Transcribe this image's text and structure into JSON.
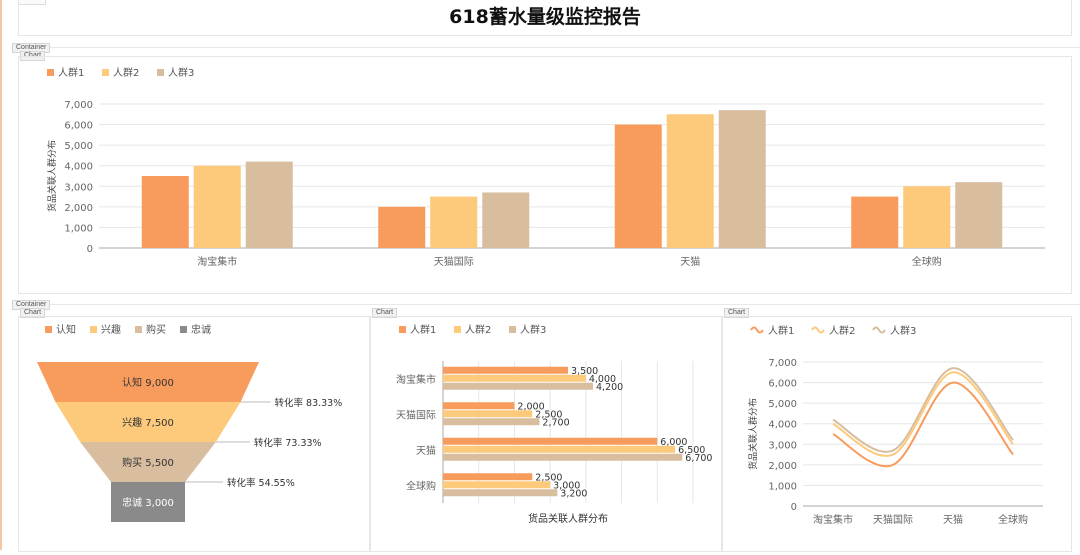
{
  "report": {
    "title": "618蓄水量级监控报告"
  },
  "labels": {
    "container": "Container",
    "chart": "Chart"
  },
  "colors": {
    "s1": "#f89c5e",
    "s2": "#fcca7a",
    "s3": "#d8bd9f",
    "s4": "#8a8a8a",
    "axis": "#666666",
    "grid": "#e6e6e6"
  },
  "chart_data": [
    {
      "type": "bar",
      "categories": [
        "淘宝集市",
        "天猫国际",
        "天猫",
        "全球购"
      ],
      "series": [
        {
          "name": "人群1",
          "values": [
            3500,
            2000,
            6000,
            2500
          ]
        },
        {
          "name": "人群2",
          "values": [
            4000,
            2500,
            6500,
            3000
          ]
        },
        {
          "name": "人群3",
          "values": [
            4200,
            2700,
            6700,
            3200
          ]
        }
      ],
      "ylabel": "货品关联人群分布",
      "ylim": [
        0,
        7000
      ],
      "yticks": [
        "0",
        "1,000",
        "2,000",
        "3,000",
        "4,000",
        "5,000",
        "6,000",
        "7,000"
      ],
      "legend": "top-left",
      "grid": true
    },
    {
      "type": "funnel",
      "stages": [
        {
          "name": "认知",
          "value": 9000,
          "value_label": "9,000"
        },
        {
          "name": "兴趣",
          "value": 7500,
          "value_label": "7,500"
        },
        {
          "name": "购买",
          "value": 5500,
          "value_label": "5,500"
        },
        {
          "name": "忠诚",
          "value": 3000,
          "value_label": "3,000"
        }
      ],
      "conversions": [
        "转化率 83.33%",
        "转化率 73.33%",
        "转化率 54.55%"
      ],
      "legend": "top-left"
    },
    {
      "type": "bar",
      "orientation": "horizontal",
      "categories": [
        "淘宝集市",
        "天猫国际",
        "天猫",
        "全球购"
      ],
      "series": [
        {
          "name": "人群1",
          "values": [
            3500,
            2000,
            6000,
            2500
          ],
          "labels": [
            "3,500",
            "2,000",
            "6,000",
            "2,500"
          ]
        },
        {
          "name": "人群2",
          "values": [
            4000,
            2500,
            6500,
            3000
          ],
          "labels": [
            "4,000",
            "2,500",
            "6,500",
            "3,000"
          ]
        },
        {
          "name": "人群3",
          "values": [
            4200,
            2700,
            6700,
            3200
          ],
          "labels": [
            "4,200",
            "2,700",
            "6,700",
            "3,200"
          ]
        }
      ],
      "xlabel": "货品关联人群分布",
      "xlim": [
        0,
        7000
      ],
      "legend": "top-left",
      "grid": true
    },
    {
      "type": "line",
      "categories": [
        "淘宝集市",
        "天猫国际",
        "天猫",
        "全球购"
      ],
      "series": [
        {
          "name": "人群1",
          "values": [
            3500,
            2000,
            6000,
            2500
          ]
        },
        {
          "name": "人群2",
          "values": [
            4000,
            2500,
            6500,
            3000
          ]
        },
        {
          "name": "人群3",
          "values": [
            4200,
            2700,
            6700,
            3200
          ]
        }
      ],
      "ylabel": "货品关联人群分布",
      "ylim": [
        0,
        7000
      ],
      "yticks": [
        "0",
        "1,000",
        "2,000",
        "3,000",
        "4,000",
        "5,000",
        "6,000",
        "7,000"
      ],
      "smooth": true,
      "legend": "top-left",
      "grid": true
    }
  ]
}
